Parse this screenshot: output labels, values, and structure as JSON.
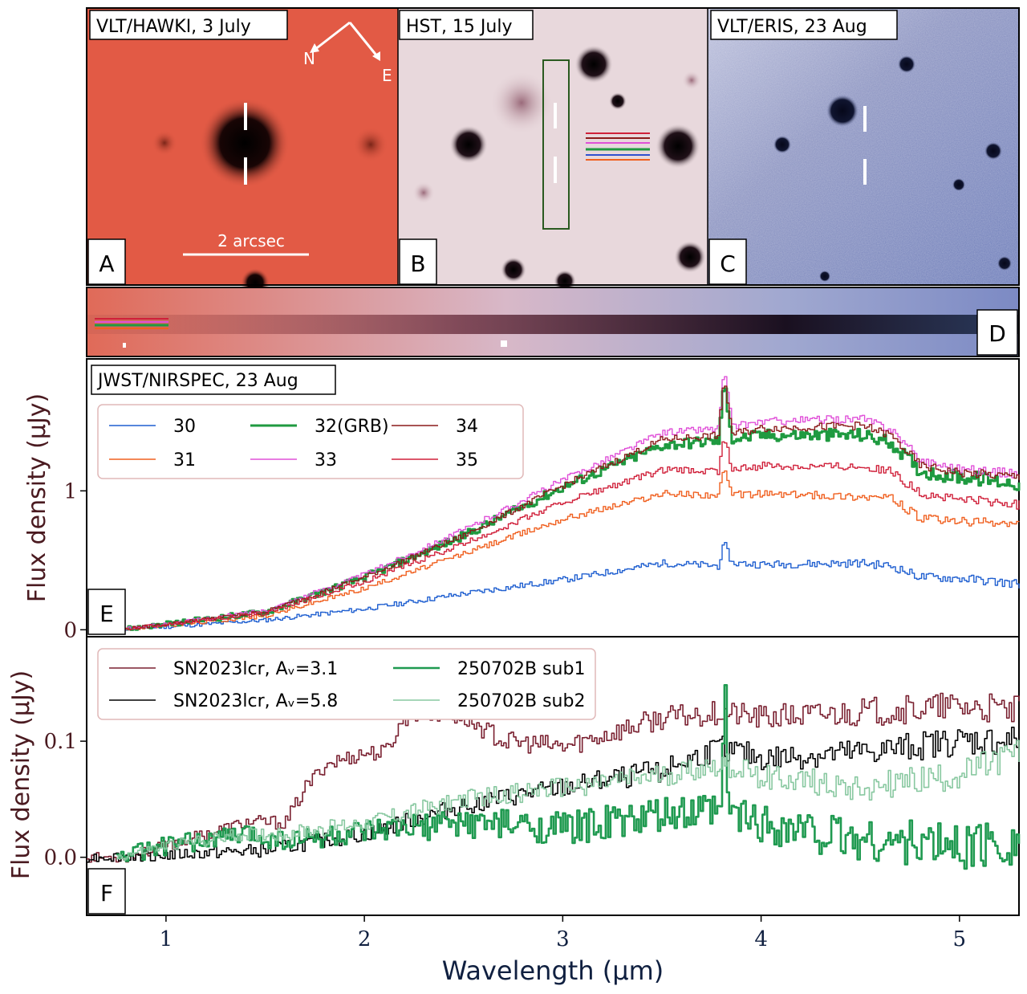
{
  "panels": {
    "A": {
      "letter": "A",
      "title": "VLT/HAWKI, 3 July",
      "scale_label": "2 arcsec",
      "compass_n": "N",
      "compass_e": "E",
      "bg": "#e25a45"
    },
    "B": {
      "letter": "B",
      "title": "HST, 15 July",
      "bg": "#e8d8dc"
    },
    "C": {
      "letter": "C",
      "title": "VLT/ERIS, 23 Aug",
      "bg": "#7c86b4"
    },
    "D": {
      "letter": "D"
    },
    "E": {
      "letter": "E",
      "title": "JWST/NIRSPEC, 23 Aug"
    },
    "F": {
      "letter": "F"
    }
  },
  "chart_data": [
    {
      "type": "line",
      "panel": "E",
      "ylabel": "Flux density (μJy)",
      "xlim": [
        0.6,
        5.3
      ],
      "ylim": [
        -0.05,
        1.95
      ],
      "yticks": [
        0,
        1
      ],
      "x": [
        0.75,
        1.0,
        1.5,
        2.0,
        2.5,
        3.0,
        3.5,
        3.78,
        3.81,
        3.85,
        4.0,
        4.5,
        4.65,
        4.8,
        5.0,
        5.3
      ],
      "series": [
        {
          "name": "30",
          "color": "#1f5fd0",
          "width": 1.4,
          "values": [
            0.0,
            0.02,
            0.07,
            0.15,
            0.26,
            0.36,
            0.48,
            0.46,
            0.62,
            0.48,
            0.47,
            0.48,
            0.46,
            0.38,
            0.37,
            0.33
          ]
        },
        {
          "name": "31",
          "color": "#f06020",
          "width": 1.4,
          "values": [
            0.0,
            0.03,
            0.1,
            0.3,
            0.55,
            0.8,
            0.98,
            0.97,
            1.15,
            0.97,
            0.98,
            0.96,
            0.95,
            0.8,
            0.78,
            0.76
          ]
        },
        {
          "name": "32(GRB)",
          "color": "#1f9a40",
          "width": 3,
          "values": [
            0.0,
            0.04,
            0.13,
            0.38,
            0.68,
            1.03,
            1.33,
            1.36,
            1.78,
            1.37,
            1.4,
            1.4,
            1.35,
            1.14,
            1.1,
            1.05
          ]
        },
        {
          "name": "33",
          "color": "#e050d8",
          "width": 1.4,
          "values": [
            0.0,
            0.04,
            0.14,
            0.4,
            0.72,
            1.08,
            1.42,
            1.45,
            1.88,
            1.46,
            1.5,
            1.52,
            1.45,
            1.22,
            1.16,
            1.12
          ]
        },
        {
          "name": "34",
          "color": "#8b1a1a",
          "width": 1.4,
          "values": [
            0.0,
            0.04,
            0.13,
            0.38,
            0.68,
            1.04,
            1.37,
            1.4,
            1.82,
            1.41,
            1.45,
            1.47,
            1.4,
            1.18,
            1.13,
            1.1
          ]
        },
        {
          "name": "35",
          "color": "#d0203a",
          "width": 1.4,
          "values": [
            0.0,
            0.04,
            0.12,
            0.35,
            0.62,
            0.92,
            1.15,
            1.14,
            1.4,
            1.15,
            1.18,
            1.18,
            1.14,
            0.98,
            0.94,
            0.9
          ]
        }
      ]
    },
    {
      "type": "line",
      "panel": "F",
      "xlabel": "Wavelength (μm)",
      "ylabel": "Flux density (μJy)",
      "xlim": [
        0.6,
        5.3
      ],
      "ylim": [
        -0.05,
        0.19
      ],
      "xticks": [
        1,
        2,
        3,
        4,
        5
      ],
      "yticks": [
        0.0,
        0.1
      ],
      "series": [
        {
          "name": "SN2023lcr, A_V=3.1",
          "color": "#7a2030",
          "width": 1.6,
          "x": [
            0.6,
            0.8,
            1.0,
            1.2,
            1.4,
            1.6,
            1.7,
            1.8,
            2.0,
            2.1,
            2.2,
            2.3,
            2.5,
            2.7,
            3.0,
            3.3,
            3.5,
            3.8,
            4.0,
            4.5,
            5.0,
            5.3
          ],
          "values": [
            0.0,
            0.0,
            0.01,
            0.02,
            0.03,
            0.03,
            0.06,
            0.08,
            0.09,
            0.09,
            0.12,
            0.125,
            0.12,
            0.1,
            0.095,
            0.11,
            0.12,
            0.125,
            0.12,
            0.125,
            0.13,
            0.125
          ]
        },
        {
          "name": "SN2023lcr, A_V=5.8",
          "color": "#000000",
          "width": 1.6,
          "x": [
            0.6,
            1.0,
            1.5,
            2.0,
            2.5,
            3.0,
            3.5,
            3.8,
            4.0,
            4.5,
            5.0,
            5.3
          ],
          "values": [
            0.0,
            0.002,
            0.006,
            0.02,
            0.045,
            0.06,
            0.075,
            0.095,
            0.085,
            0.09,
            0.1,
            0.1
          ]
        },
        {
          "name": "250702B sub1",
          "color": "#1f9a50",
          "width": 2.6,
          "x": [
            0.75,
            1.0,
            1.4,
            1.6,
            2.0,
            2.5,
            3.0,
            3.5,
            3.8,
            3.81,
            3.83,
            4.0,
            4.5,
            5.0,
            5.3
          ],
          "values": [
            0.0,
            0.01,
            0.02,
            0.015,
            0.02,
            0.03,
            0.025,
            0.035,
            0.04,
            0.18,
            0.04,
            0.03,
            0.015,
            0.01,
            0.015
          ]
        },
        {
          "name": "250702B sub2",
          "color": "#88c8a0",
          "width": 1.6,
          "x": [
            0.75,
            1.0,
            1.4,
            1.6,
            2.0,
            2.5,
            3.0,
            3.5,
            3.8,
            4.0,
            4.5,
            5.0,
            5.3
          ],
          "values": [
            0.0,
            0.01,
            0.02,
            0.02,
            0.03,
            0.05,
            0.06,
            0.07,
            0.08,
            0.07,
            0.06,
            0.07,
            0.09
          ]
        }
      ]
    }
  ]
}
